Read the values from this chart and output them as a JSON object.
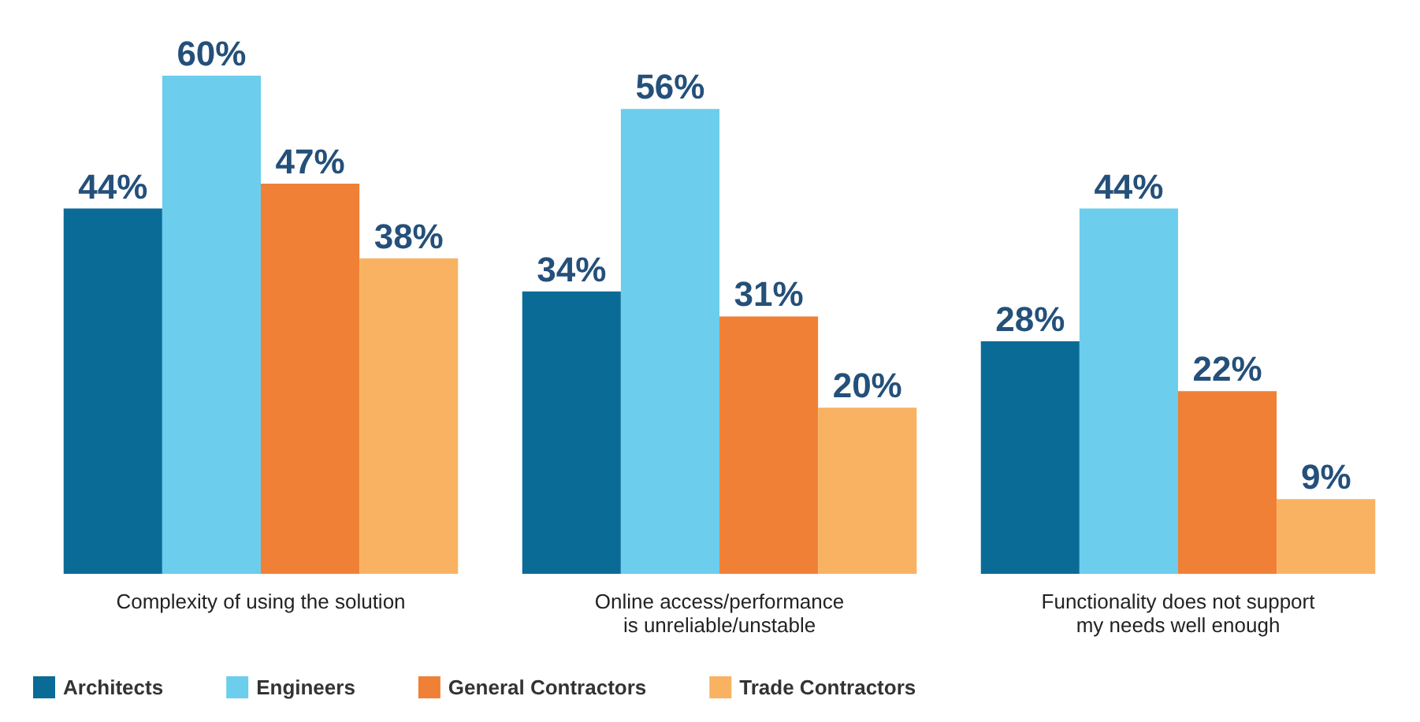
{
  "chart_data": {
    "type": "bar",
    "categories": [
      "Complexity of using the solution",
      "Online access/performance\nis unreliable/unstable",
      "Functionality does not support\nmy needs well enough"
    ],
    "series": [
      {
        "name": "Architects",
        "color": "#0b6b97",
        "values": [
          44,
          34,
          28
        ],
        "value_labels": [
          "44%",
          "34%",
          "28%"
        ]
      },
      {
        "name": "Engineers",
        "color": "#6dcdec",
        "values": [
          60,
          56,
          44
        ],
        "value_labels": [
          "60%",
          "56%",
          "44%"
        ]
      },
      {
        "name": "General Contractors",
        "color": "#f08035",
        "values": [
          47,
          31,
          22
        ],
        "value_labels": [
          "47%",
          "31%",
          "22%"
        ]
      },
      {
        "name": "Trade Contractors",
        "color": "#f8b262",
        "values": [
          38,
          20,
          9
        ],
        "value_labels": [
          "38%",
          "20%",
          "9%"
        ]
      }
    ],
    "legend": "bottom left",
    "grid": false
  }
}
